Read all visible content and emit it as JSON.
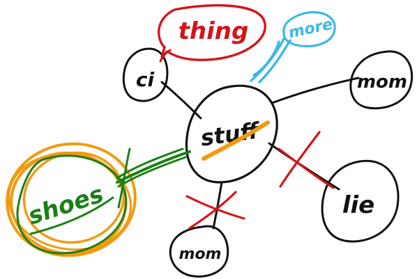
{
  "colors": {
    "background": "#ffffff",
    "black_ink": "#111111",
    "red_ink": "#d3141b",
    "blue_ink": "#3bb8e8",
    "green_ink": "#1a7f16",
    "orange_ink": "#f29a0f"
  },
  "diagram": {
    "type": "hand-drawn mind map",
    "center": {
      "label": "stuff"
    },
    "nodes": [
      {
        "id": "ci",
        "label": "ci"
      },
      {
        "id": "thing",
        "label": "thing"
      },
      {
        "id": "more-top",
        "label": "more"
      },
      {
        "id": "mom",
        "label": "mom"
      },
      {
        "id": "lie",
        "label": "lie"
      },
      {
        "id": "mom-bottom",
        "label": "mom"
      },
      {
        "id": "shoes",
        "label": "shoes"
      }
    ],
    "marks": {
      "crossed_out_links": [
        "lie",
        "mom-bottom"
      ],
      "highlighted_node": "shoes",
      "highlighted_link": "shoes"
    }
  }
}
